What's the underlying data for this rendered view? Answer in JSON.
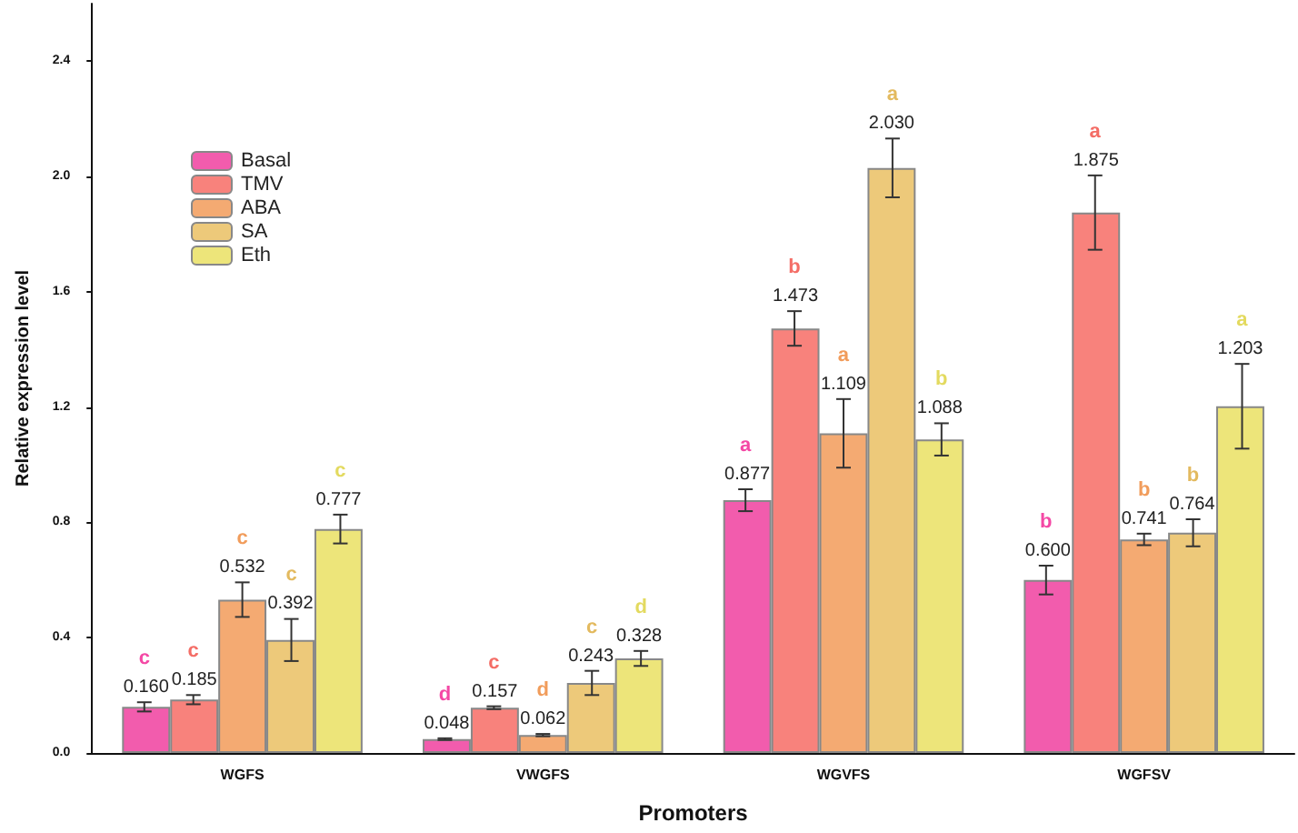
{
  "chart_data": {
    "type": "bar",
    "xlabel": "Promoters",
    "ylabel": "Relative expression level",
    "categories": [
      "WGFS",
      "VWGFS",
      "WGVFS",
      "WGFSV"
    ],
    "series": [
      {
        "name": "Basal",
        "color": "#f25cad",
        "values": [
          0.16,
          0.048,
          0.877,
          0.6
        ],
        "errors": [
          0.016,
          0.003,
          0.038,
          0.05
        ],
        "value_labels": [
          "0.160",
          "0.048",
          "0.877",
          "0.600"
        ]
      },
      {
        "name": "TMV",
        "color": "#f8827c",
        "values": [
          0.185,
          0.157,
          1.473,
          1.875
        ],
        "errors": [
          0.016,
          0.005,
          0.06,
          0.129
        ],
        "value_labels": [
          "0.185",
          "0.157",
          "1.473",
          "1.875"
        ]
      },
      {
        "name": "ABA",
        "color": "#f4aa72",
        "values": [
          0.532,
          0.062,
          1.109,
          0.741
        ],
        "errors": [
          0.06,
          0.004,
          0.119,
          0.02
        ],
        "value_labels": [
          "0.532",
          "0.062",
          "1.109",
          "0.741"
        ]
      },
      {
        "name": "SA",
        "color": "#edc97a",
        "values": [
          0.392,
          0.243,
          2.03,
          0.764
        ],
        "errors": [
          0.073,
          0.042,
          0.102,
          0.047
        ],
        "value_labels": [
          "0.392",
          "0.243",
          "2.030",
          "0.764"
        ]
      },
      {
        "name": "Eth",
        "color": "#ede57a",
        "values": [
          0.777,
          0.328,
          1.088,
          1.203
        ],
        "errors": [
          0.05,
          0.026,
          0.056,
          0.147
        ],
        "value_labels": [
          "0.777",
          "0.328",
          "1.088",
          "1.203"
        ]
      }
    ],
    "ylim": [
      0,
      2.6
    ],
    "yticks": [
      {
        "value": 0,
        "label": "0.0"
      },
      0.4,
      0.8,
      1.2,
      1.6,
      {
        "value": 2,
        "label": "2.0"
      },
      2.4
    ],
    "grid": false,
    "legend": "top left",
    "annotations": [
      "c",
      "c",
      "c",
      "c",
      "c",
      "d",
      "c",
      "d",
      "c",
      "d",
      "a",
      "b",
      "a",
      "a",
      "b",
      "b",
      "a",
      "b",
      "b",
      "a"
    ]
  }
}
